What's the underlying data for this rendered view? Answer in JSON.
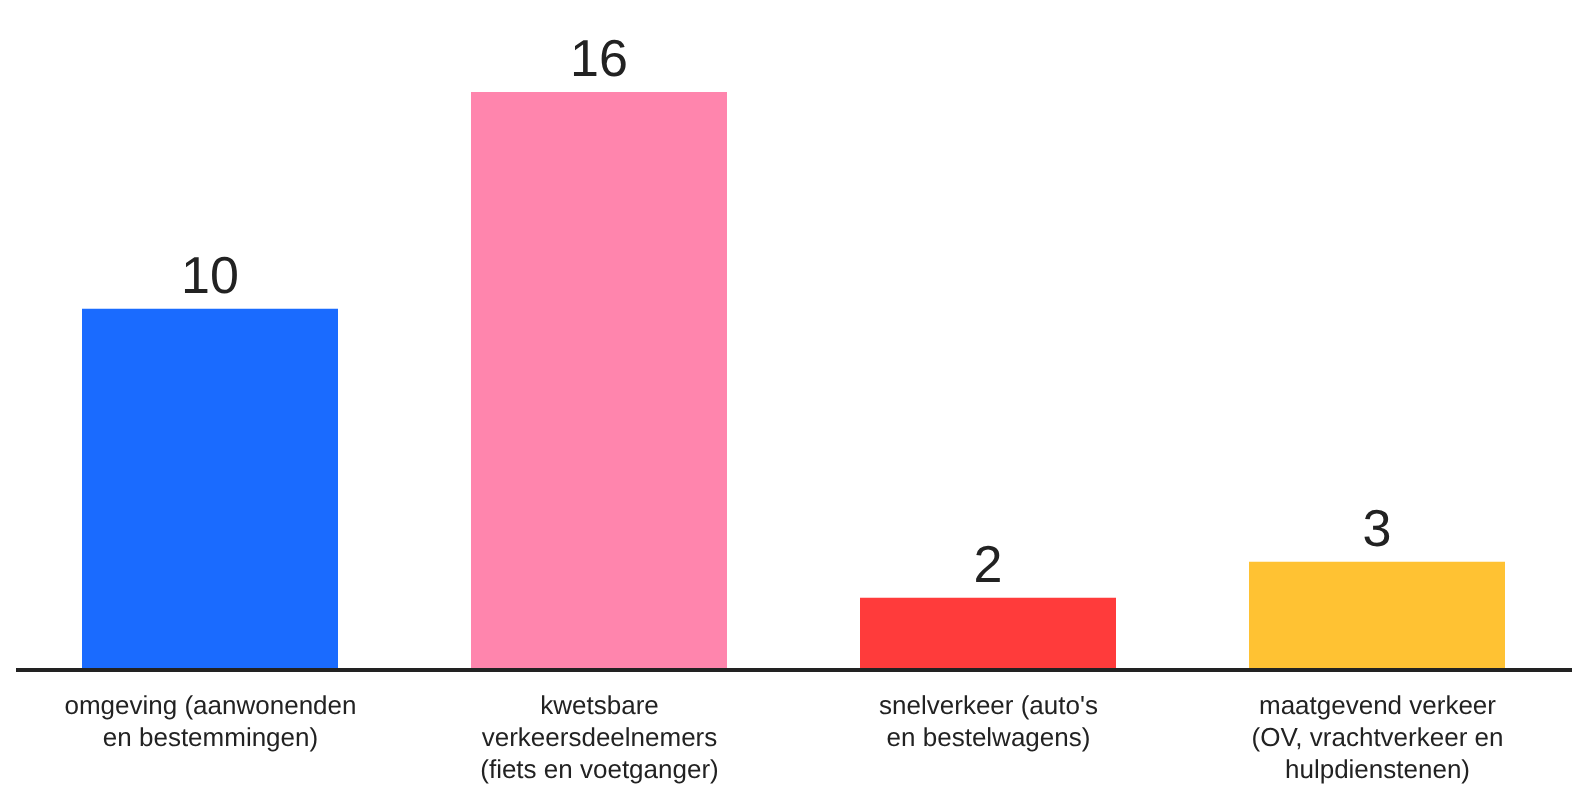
{
  "chart_data": {
    "type": "bar",
    "categories": [
      "omgeving (aanwonenden en bestemmingen)",
      "kwetsbare verkeersdeelnemers (fiets en voetganger)",
      "snelverkeer (auto's en bestelwagens)",
      "maatgevend verkeer (OV, vrachtverkeer en hulpdienstenen)"
    ],
    "values": [
      10,
      16,
      2,
      3
    ],
    "colors": [
      "#1a6bff",
      "#ff85ad",
      "#ff3b3b",
      "#ffc233"
    ],
    "data_labels": true
  }
}
